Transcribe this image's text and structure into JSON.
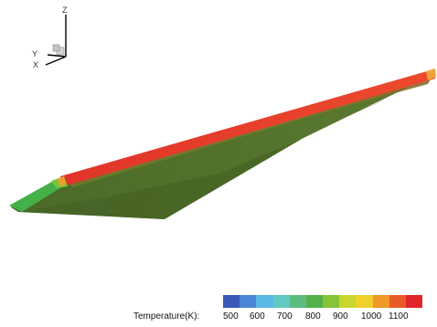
{
  "axes_triad": {
    "z_label": "Z",
    "y_label": "Y",
    "x_label": "X"
  },
  "legend": {
    "title": "Temperature(K):",
    "colors": [
      "#3a58b8",
      "#4a86d6",
      "#5bb8e4",
      "#62c8c2",
      "#5cbc80",
      "#54b04a",
      "#86c23a",
      "#c8d62e",
      "#f0d02a",
      "#f09828",
      "#e85a26",
      "#e0262a"
    ],
    "ticks": [
      "500",
      "600",
      "700",
      "800",
      "900",
      "1000",
      "1100"
    ]
  }
}
